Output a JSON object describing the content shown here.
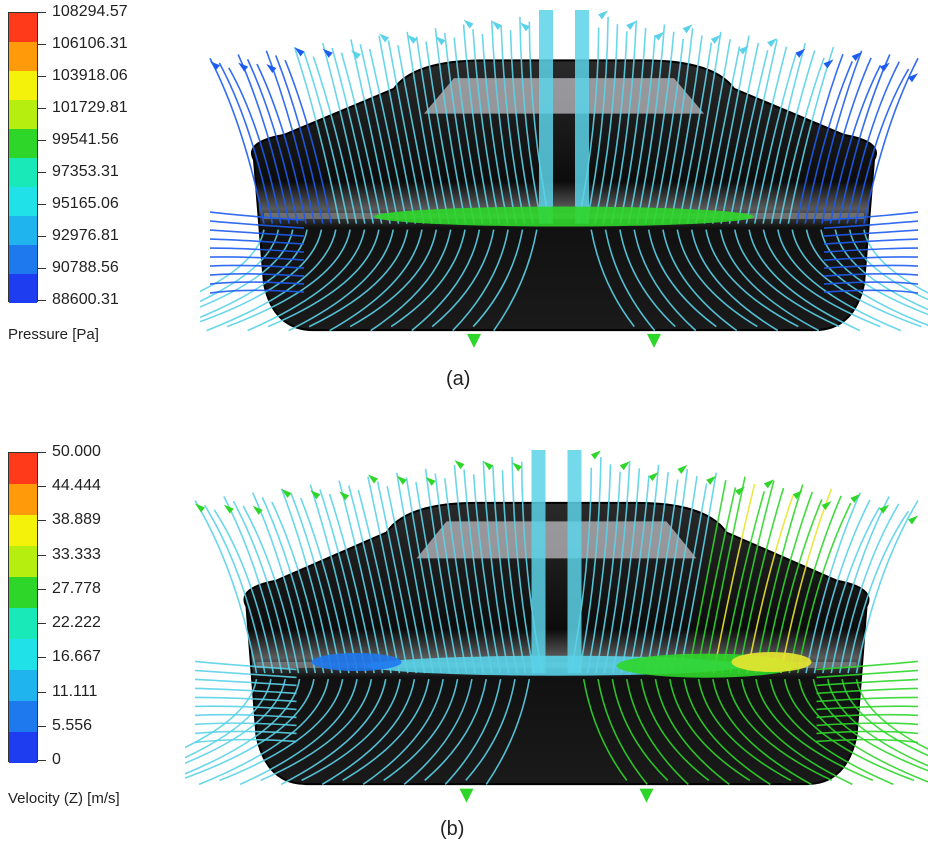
{
  "figures": [
    {
      "id": "a",
      "caption": "(a)",
      "legend": {
        "title": "Pressure [Pa]",
        "values": [
          "108294.57",
          "106106.31",
          "103918.06",
          "101729.81",
          "99541.56",
          "97353.31",
          "95165.06",
          "92976.81",
          "90788.56",
          "88600.31"
        ]
      },
      "colors": [
        "#ff3a1a",
        "#ff9a0a",
        "#f4f20a",
        "#b6ee10",
        "#2fd62a",
        "#19e8b8",
        "#20e0e8",
        "#1fb4ee",
        "#1e78ee",
        "#1e3cf0"
      ],
      "streamline_colors": {
        "primary": "#5ad2e8",
        "mid": "#2fd62a",
        "low": "#1e5cf0"
      }
    },
    {
      "id": "b",
      "caption": "(b)",
      "legend": {
        "title": "Velocity (Z) [m/s]",
        "values": [
          "50.000",
          "44.444",
          "38.889",
          "33.333",
          "27.778",
          "22.222",
          "16.667",
          "11.111",
          "5.556",
          "0"
        ]
      },
      "colors": [
        "#ff3a1a",
        "#ff9a0a",
        "#f4f20a",
        "#b6ee10",
        "#2fd62a",
        "#19e8b8",
        "#20e0e8",
        "#1fb4ee",
        "#1e78ee",
        "#1e3cf0"
      ],
      "streamline_colors": {
        "primary": "#5ad2e8",
        "mid": "#2fd62a",
        "high": "#e8e630",
        "low": "#1e78ee"
      }
    }
  ]
}
